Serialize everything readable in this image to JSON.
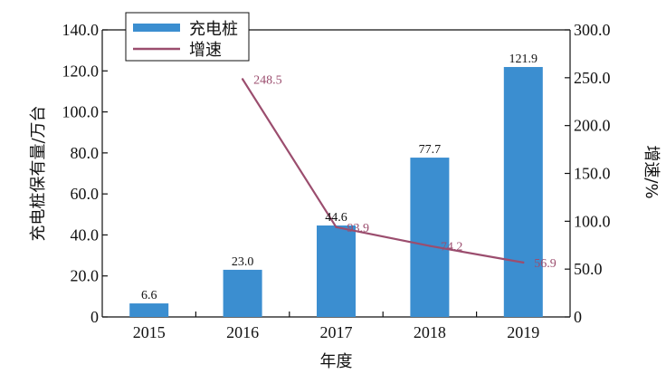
{
  "chart_data": {
    "type": "bar",
    "categories": [
      "2015",
      "2016",
      "2017",
      "2018",
      "2019"
    ],
    "xlabel": "年度",
    "ylabel": "充电桩保有量/万台",
    "y2label": "增速/%",
    "ylim": [
      0,
      140
    ],
    "y2lim": [
      0,
      300
    ],
    "y_ticks": [
      "0",
      "20.0",
      "40.0",
      "60.0",
      "80.0",
      "100.0",
      "120.0",
      "140.0"
    ],
    "y2_ticks": [
      "0",
      "50.0",
      "100.0",
      "150.0",
      "200.0",
      "250.0",
      "300.0"
    ],
    "legend_position": "top-left",
    "series": [
      {
        "name": "充电桩",
        "type": "bar",
        "axis": "left",
        "color": "#3b8ed0",
        "values": [
          6.6,
          23.0,
          44.6,
          77.7,
          121.9
        ],
        "labels": [
          "6.6",
          "23.0",
          "44.6",
          "77.7",
          "121.9"
        ]
      },
      {
        "name": "增速",
        "type": "line",
        "axis": "right",
        "color": "#9b4d6e",
        "values": [
          null,
          248.5,
          93.9,
          74.2,
          56.9
        ],
        "labels": [
          "",
          "248.5",
          "93.9",
          "74.2",
          "56.9"
        ]
      }
    ]
  }
}
